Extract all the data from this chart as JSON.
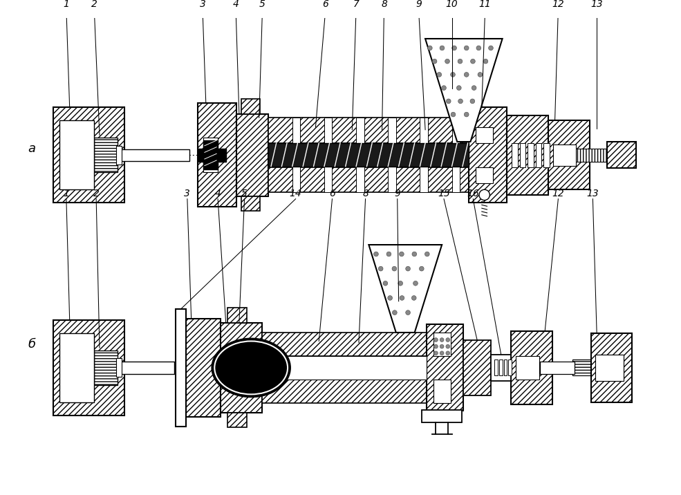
{
  "bg_color": "#ffffff",
  "label_a": "а",
  "label_b": "б"
}
